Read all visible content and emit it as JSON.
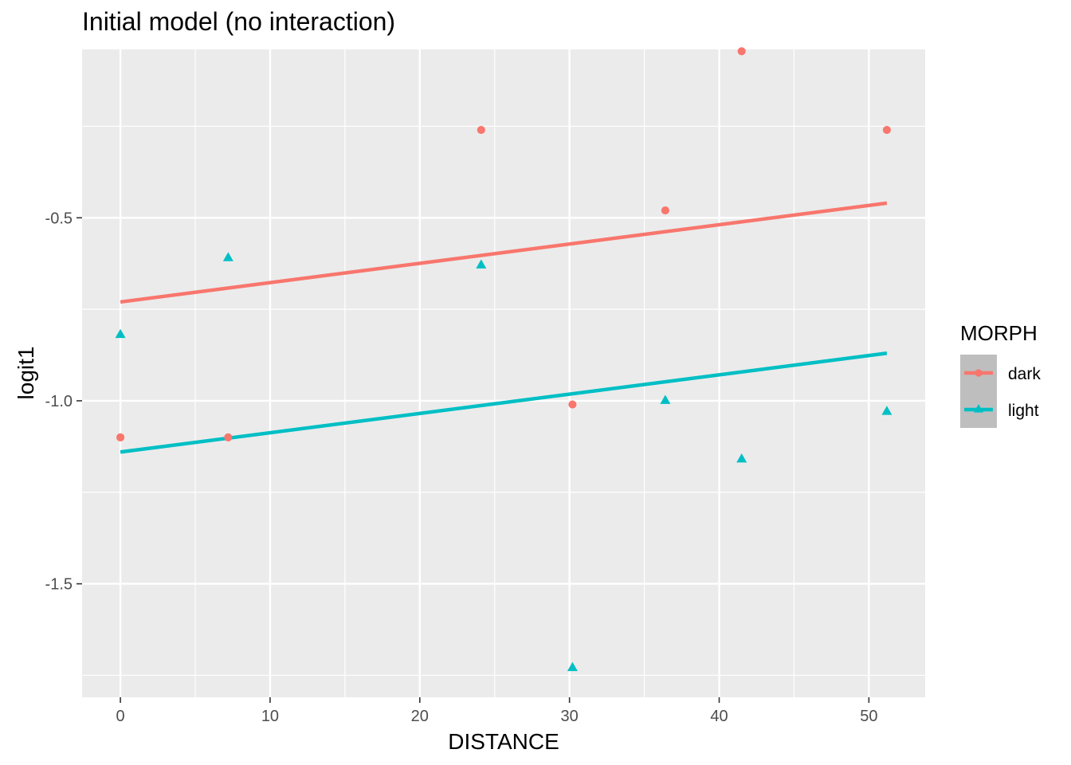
{
  "chart_data": {
    "type": "scatter",
    "title": "Initial model (no interaction)",
    "xlabel": "DISTANCE",
    "ylabel": "logit1",
    "xlim": [
      -2.56,
      53.76
    ],
    "ylim": [
      -1.81,
      -0.04
    ],
    "x_ticks": [
      0,
      10,
      20,
      30,
      40,
      50
    ],
    "x_tick_labels": [
      "0",
      "10",
      "20",
      "30",
      "40",
      "50"
    ],
    "y_ticks": [
      -1.5,
      -1.0,
      -0.5
    ],
    "y_tick_labels": [
      "-1.5",
      "-1.0",
      "-0.5"
    ],
    "grid": true,
    "legend": {
      "title": "MORPH",
      "position": "right"
    },
    "series": [
      {
        "name": "dark",
        "color": "#F8766D",
        "marker": "circle",
        "points": [
          {
            "x": 0,
            "y": -1.1
          },
          {
            "x": 7.2,
            "y": -1.1
          },
          {
            "x": 24.1,
            "y": -0.26
          },
          {
            "x": 30.2,
            "y": -1.01
          },
          {
            "x": 36.4,
            "y": -0.48
          },
          {
            "x": 41.5,
            "y": -0.045
          },
          {
            "x": 51.2,
            "y": -0.26
          }
        ],
        "fit_line": [
          {
            "x": 0,
            "y": -0.73
          },
          {
            "x": 51.2,
            "y": -0.46
          }
        ]
      },
      {
        "name": "light",
        "color": "#00BFC4",
        "marker": "triangle",
        "points": [
          {
            "x": 0,
            "y": -0.82
          },
          {
            "x": 7.2,
            "y": -0.61
          },
          {
            "x": 24.1,
            "y": -0.63
          },
          {
            "x": 30.2,
            "y": -1.73
          },
          {
            "x": 36.4,
            "y": -1.0
          },
          {
            "x": 41.5,
            "y": -1.16
          },
          {
            "x": 51.2,
            "y": -1.03
          }
        ],
        "fit_line": [
          {
            "x": 0,
            "y": -1.14
          },
          {
            "x": 51.2,
            "y": -0.87
          }
        ]
      }
    ]
  }
}
